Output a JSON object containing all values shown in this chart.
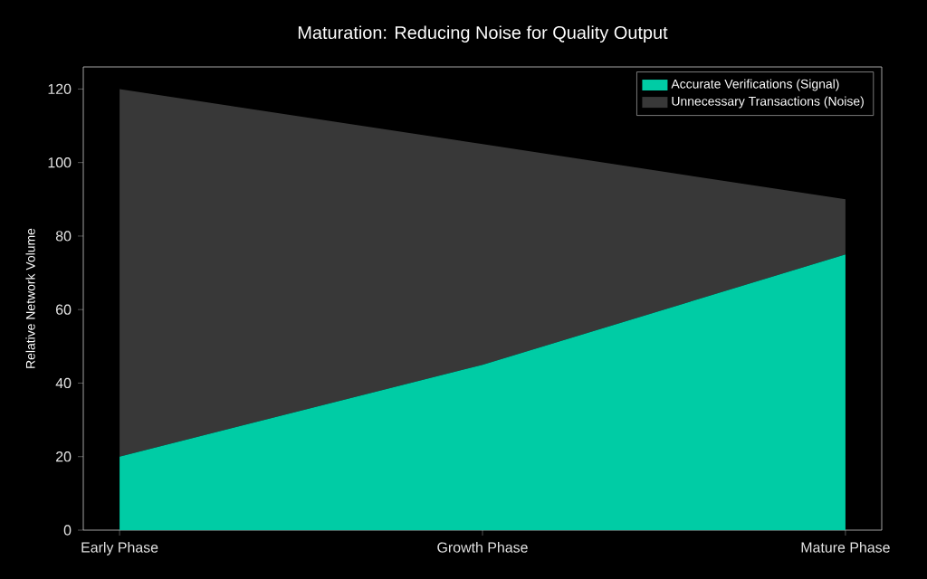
{
  "chart_data": {
    "type": "area",
    "title": "Maturation: Reducing Noise for Quality Output",
    "ylabel": "Relative Network Volume",
    "categories": [
      "Early Phase",
      "Growth Phase",
      "Mature Phase"
    ],
    "series": [
      {
        "name": "Accurate Verifications (Signal)",
        "color": "#00cca5",
        "values": [
          20,
          45,
          75
        ]
      },
      {
        "name": "Unnecessary Transactions (Noise)",
        "color": "#383838",
        "values": [
          100,
          60,
          15
        ]
      }
    ],
    "stacked": true,
    "ylim": [
      0,
      126
    ],
    "yticks": [
      0,
      20,
      40,
      60,
      80,
      100,
      120
    ],
    "legend": "top right"
  }
}
